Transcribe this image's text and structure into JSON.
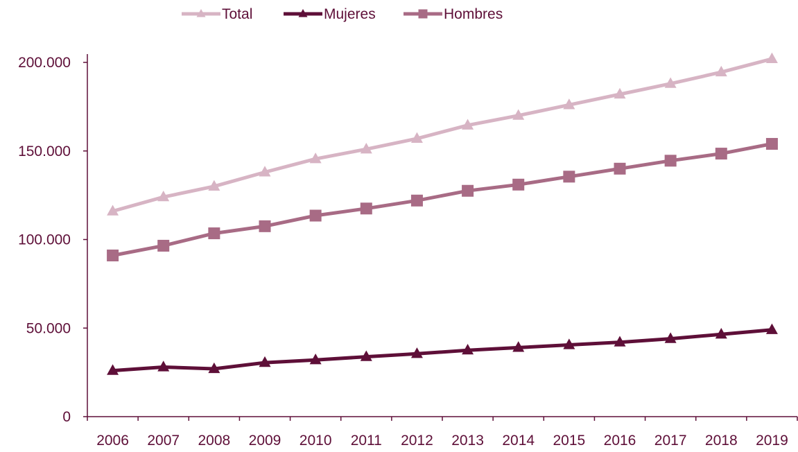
{
  "chart_data": {
    "type": "line",
    "categories": [
      "2006",
      "2007",
      "2008",
      "2009",
      "2010",
      "2011",
      "2012",
      "2013",
      "2014",
      "2015",
      "2016",
      "2017",
      "2018",
      "2019"
    ],
    "series": [
      {
        "name": "Total",
        "marker": "triangle",
        "color": "#d7b4c4",
        "values": [
          116000,
          124000,
          130000,
          138000,
          145500,
          151000,
          157000,
          164500,
          170000,
          176000,
          182000,
          188000,
          194500,
          202000
        ]
      },
      {
        "name": "Mujeres",
        "marker": "triangle",
        "color": "#5e0f38",
        "values": [
          26000,
          28000,
          27000,
          30500,
          32000,
          33800,
          35500,
          37500,
          39000,
          40500,
          42000,
          44000,
          46500,
          49000
        ]
      },
      {
        "name": "Hombres",
        "marker": "square",
        "color": "#a86b85",
        "values": [
          91000,
          96500,
          103500,
          107500,
          113500,
          117500,
          122000,
          127500,
          131000,
          135500,
          140000,
          144500,
          148500,
          154000
        ]
      }
    ],
    "ylim": [
      0,
      200000
    ],
    "y_ticks": [
      0,
      50000,
      100000,
      150000,
      200000
    ],
    "y_tick_labels": [
      "0",
      "50.000",
      "100.000",
      "150.000",
      "200.000"
    ],
    "grid": false,
    "legend_position": "top",
    "axis_color": "#5e0f38"
  }
}
